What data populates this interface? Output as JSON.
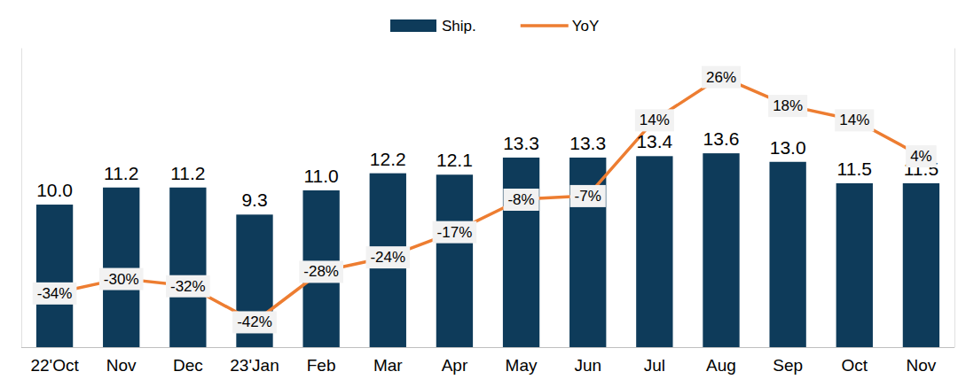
{
  "chart_data": {
    "type": "bar",
    "categories": [
      "22'Oct",
      "Nov",
      "Dec",
      "23'Jan",
      "Feb",
      "Mar",
      "Apr",
      "May",
      "Jun",
      "Jul",
      "Aug",
      "Sep",
      "Oct",
      "Nov"
    ],
    "series": [
      {
        "name": "Ship.",
        "type": "bar",
        "color": "#0e3b5a",
        "values": [
          10.0,
          11.2,
          11.2,
          9.3,
          11.0,
          12.2,
          12.1,
          13.3,
          13.3,
          13.4,
          13.6,
          13.0,
          11.5,
          11.5
        ],
        "value_labels": [
          "10.0",
          "11.2",
          "11.2",
          "9.3",
          "11.0",
          "12.2",
          "12.1",
          "13.3",
          "13.3",
          "13.4",
          "13.6",
          "13.0",
          "11.5",
          "11.5"
        ]
      },
      {
        "name": "YoY",
        "type": "line",
        "axis": "y2",
        "color": "#ed7d31",
        "values": [
          -34,
          -30,
          -32,
          -42,
          -28,
          -24,
          -17,
          -8,
          -7,
          14,
          26,
          18,
          14,
          4
        ],
        "value_labels": [
          "-34%",
          "-30%",
          "-32%",
          "-42%",
          "-28%",
          "-24%",
          "-17%",
          "-8%",
          "-7%",
          "14%",
          "26%",
          "18%",
          "14%",
          "4%"
        ]
      }
    ],
    "ylim": [
      0,
      21
    ],
    "y2lim": [
      -49,
      34
    ],
    "data_labels": true,
    "tick_labels": "x",
    "legend": "top",
    "grid": false
  }
}
